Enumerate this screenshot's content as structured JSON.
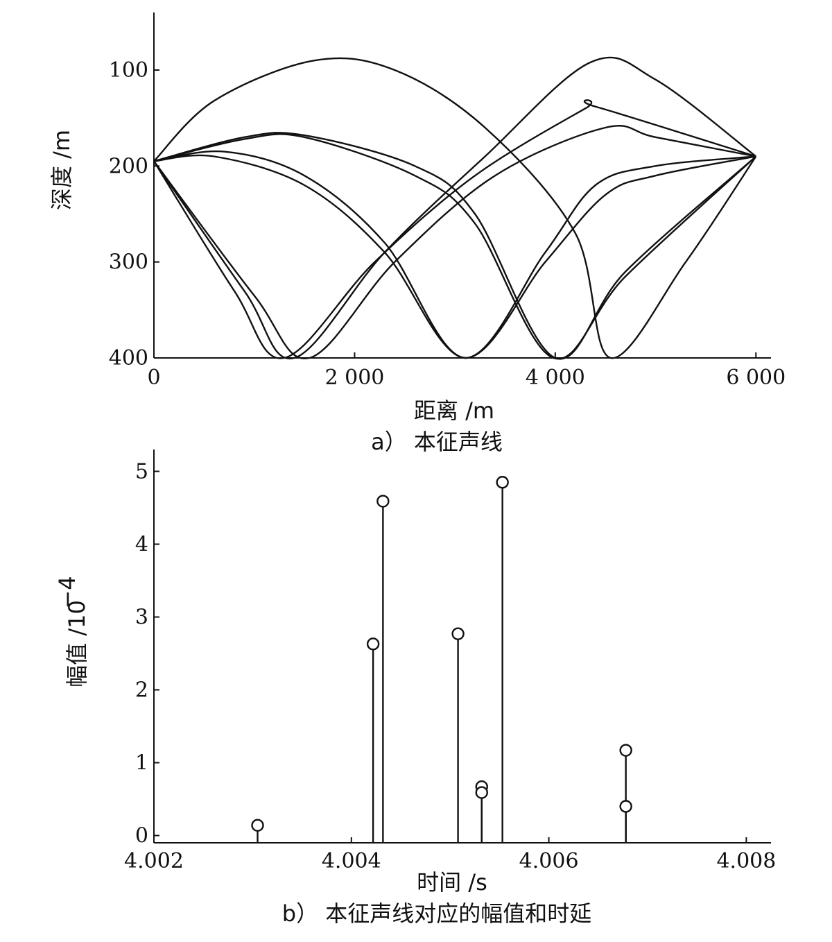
{
  "chart_data": [
    {
      "type": "line",
      "caption": "a） 本征声线",
      "xlabel": "距离 /m",
      "ylabel": "深度 /m",
      "xlim": [
        0,
        6150
      ],
      "ylim": [
        40,
        400
      ],
      "y_inverted": true,
      "x_ticks": [
        0,
        2000,
        4000,
        6000
      ],
      "x_tick_labels": [
        "0",
        "2 000",
        "4 000",
        "6 000"
      ],
      "y_ticks": [
        100,
        200,
        300,
        400
      ],
      "y_tick_labels": [
        "100",
        "200",
        "300",
        "400"
      ],
      "source": {
        "x": 0,
        "y": 195
      },
      "receiver": {
        "x": 6000,
        "y": 190
      },
      "series": [
        {
          "points": [
            [
              0,
              195
            ],
            [
              600,
              132
            ],
            [
              1600,
              90
            ],
            [
              2400,
              100
            ],
            [
              3300,
              160
            ],
            [
              4200,
              270
            ],
            [
              4550,
              400
            ],
            [
              5300,
              300
            ],
            [
              6000,
              190
            ]
          ]
        },
        {
          "points": [
            [
              0,
              195
            ],
            [
              900,
              170
            ],
            [
              1500,
              168
            ],
            [
              2600,
              200
            ],
            [
              3200,
              250
            ],
            [
              4000,
              400
            ],
            [
              4700,
              310
            ],
            [
              6000,
              190
            ]
          ]
        },
        {
          "points": [
            [
              0,
              195
            ],
            [
              900,
              172
            ],
            [
              1500,
              170
            ],
            [
              2600,
              210
            ],
            [
              3200,
              260
            ],
            [
              3980,
              400
            ],
            [
              4700,
              315
            ],
            [
              6000,
              190
            ]
          ]
        },
        {
          "points": [
            [
              0,
              195
            ],
            [
              700,
              185
            ],
            [
              1500,
              210
            ],
            [
              2300,
              280
            ],
            [
              3100,
              400
            ],
            [
              3900,
              290
            ],
            [
              4400,
              220
            ],
            [
              5000,
              200
            ],
            [
              6000,
              190
            ]
          ]
        },
        {
          "points": [
            [
              0,
              195
            ],
            [
              600,
              190
            ],
            [
              1500,
              220
            ],
            [
              2300,
              290
            ],
            [
              3100,
              400
            ],
            [
              3900,
              300
            ],
            [
              4500,
              230
            ],
            [
              5000,
              210
            ],
            [
              6000,
              190
            ]
          ]
        },
        {
          "points": [
            [
              0,
              195
            ],
            [
              800,
              330
            ],
            [
              1300,
              400
            ],
            [
              2200,
              300
            ],
            [
              3200,
              210
            ],
            [
              4300,
              140
            ],
            [
              4400,
              138
            ],
            [
              6000,
              190
            ]
          ]
        },
        {
          "points": [
            [
              0,
              195
            ],
            [
              900,
              330
            ],
            [
              1400,
              400
            ],
            [
              2300,
              290
            ],
            [
              3300,
              190
            ],
            [
              4350,
              92
            ],
            [
              5000,
              110
            ],
            [
              6000,
              190
            ]
          ]
        },
        {
          "points": [
            [
              0,
              195
            ],
            [
              1000,
              335
            ],
            [
              1550,
              400
            ],
            [
              2400,
              300
            ],
            [
              3400,
              210
            ],
            [
              4500,
              160
            ],
            [
              5000,
              170
            ],
            [
              6000,
              190
            ]
          ]
        }
      ]
    },
    {
      "type": "stem",
      "caption": "b） 本征声线对应的幅值和时延",
      "xlabel": "时间 /s",
      "ylabel": "幅值 /10",
      "ylabel_exponent": "−4",
      "xlim": [
        4.002,
        4.00825
      ],
      "ylim": [
        -0.1,
        5.3
      ],
      "x_ticks": [
        4.002,
        4.004,
        4.006,
        4.008
      ],
      "x_tick_labels": [
        "4.002",
        "4.004",
        "4.006",
        "4.008"
      ],
      "y_ticks": [
        0,
        1,
        2,
        3,
        4,
        5
      ],
      "y_tick_labels": [
        "0",
        "1",
        "2",
        "3",
        "4",
        "5"
      ],
      "points": [
        {
          "x": 4.00305,
          "y": 0.14
        },
        {
          "x": 4.00422,
          "y": 2.63
        },
        {
          "x": 4.00432,
          "y": 4.59
        },
        {
          "x": 4.00508,
          "y": 2.77
        },
        {
          "x": 4.00532,
          "y": 0.67
        },
        {
          "x": 4.00532,
          "y": 0.59
        },
        {
          "x": 4.00553,
          "y": 4.85
        },
        {
          "x": 4.00678,
          "y": 1.17
        },
        {
          "x": 4.00678,
          "y": 0.4
        }
      ]
    }
  ]
}
